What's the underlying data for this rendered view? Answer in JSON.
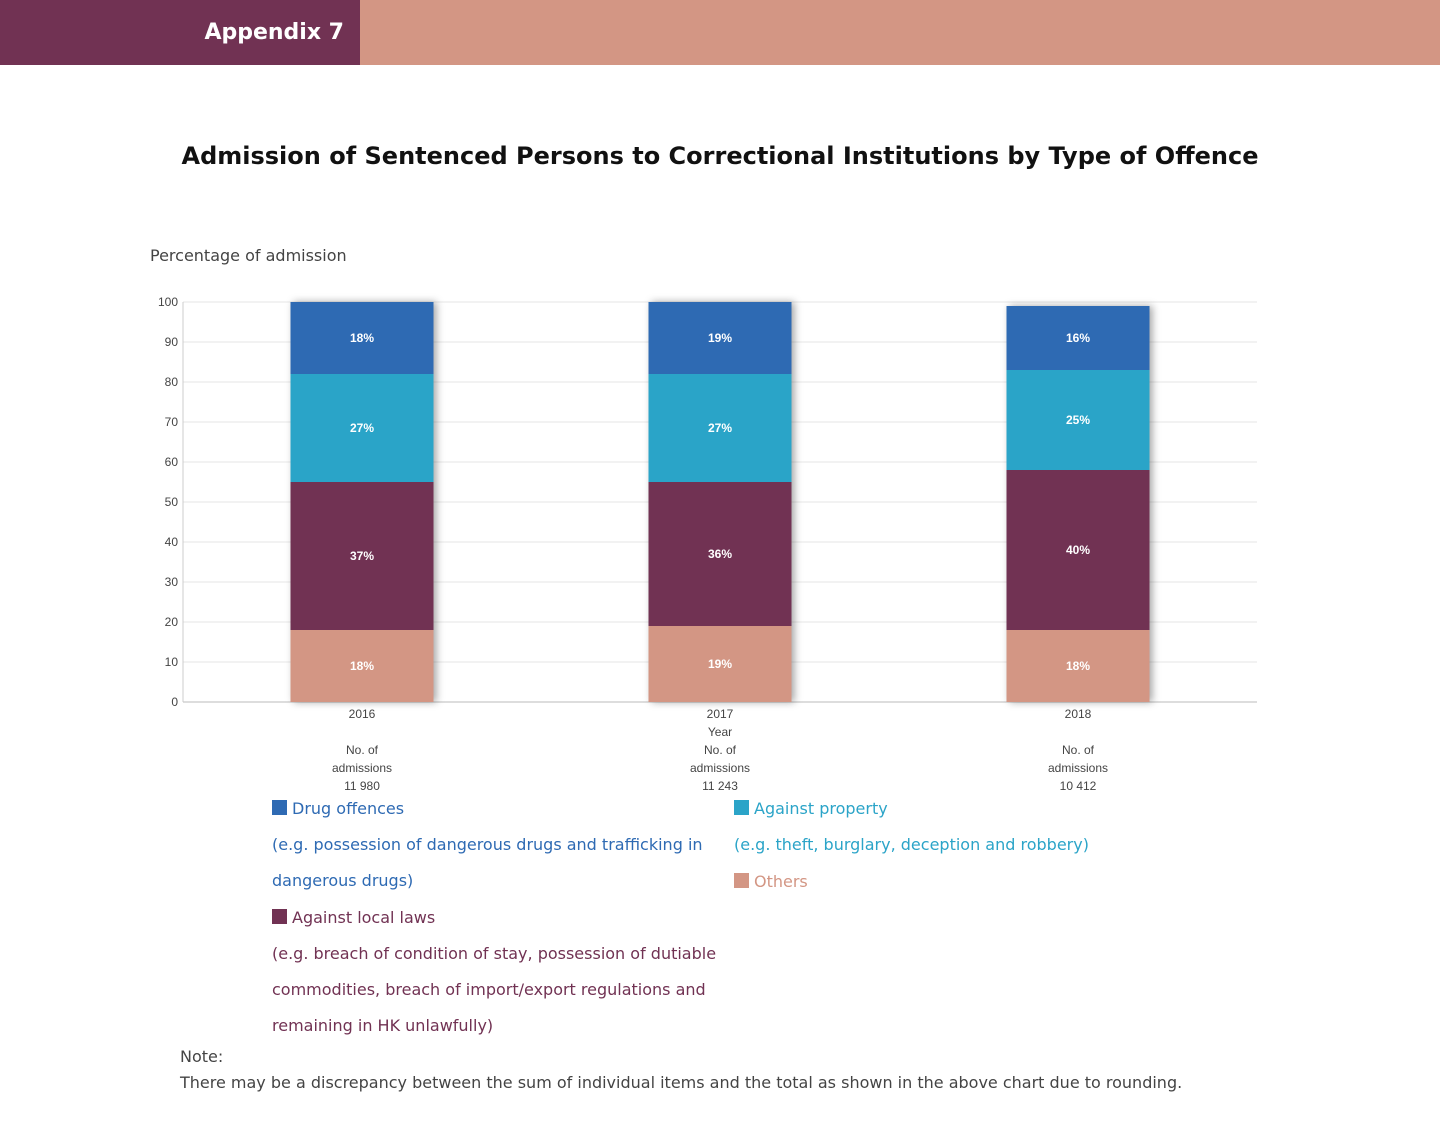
{
  "header": {
    "tab_label": "Appendix 7"
  },
  "title": "Admission of Sentenced Persons to Correctional Institutions by Type of Offence",
  "colors": {
    "drug": "#2e6ab3",
    "property": "#2ba4c8",
    "local": "#713253",
    "others": "#d39684"
  },
  "chart_data": {
    "type": "bar",
    "stacked": true,
    "ylabel": "Percentage of admission",
    "xlabel": "Year",
    "categories": [
      "2016",
      "2017",
      "2018"
    ],
    "category_notes": [
      [
        "No. of",
        "admissions",
        "11 980"
      ],
      [
        "No. of",
        "admissions",
        "11 243"
      ],
      [
        "No. of",
        "admissions",
        "10 412"
      ]
    ],
    "ylim": [
      0,
      100
    ],
    "yticks": [
      0,
      10,
      20,
      30,
      40,
      50,
      60,
      70,
      80,
      90,
      100
    ],
    "grid": true,
    "series": [
      {
        "name": "Others",
        "color": "#d39684",
        "values": [
          18,
          19,
          18
        ],
        "labels": [
          "18%",
          "19%",
          "18%"
        ]
      },
      {
        "name": "Against local laws",
        "color": "#713253",
        "values": [
          37,
          36,
          40
        ],
        "labels": [
          "37%",
          "36%",
          "40%"
        ]
      },
      {
        "name": "Against property",
        "color": "#2ba4c8",
        "values": [
          27,
          27,
          25
        ],
        "labels": [
          "27%",
          "27%",
          "25%"
        ]
      },
      {
        "name": "Drug offences",
        "color": "#2e6ab3",
        "values": [
          18,
          19,
          16
        ],
        "labels": [
          "18%",
          "19%",
          "16%"
        ]
      }
    ]
  },
  "legend": {
    "drug": {
      "label": "Drug offences",
      "desc": [
        "(e.g. possession of dangerous drugs and trafficking in",
        "dangerous drugs)"
      ]
    },
    "property": {
      "label": "Against property",
      "desc": [
        "(e.g. theft, burglary, deception and robbery)"
      ]
    },
    "others": {
      "label": "Others"
    },
    "local": {
      "label": "Against local laws",
      "desc": [
        "(e.g. breach of condition of stay, possession of dutiable",
        "commodities, breach of import/export regulations and",
        "remaining in HK unlawfully)"
      ]
    }
  },
  "note": {
    "heading": "Note:",
    "text": "There may be a discrepancy between the sum of individual items and the total as shown in the above chart due to rounding."
  }
}
